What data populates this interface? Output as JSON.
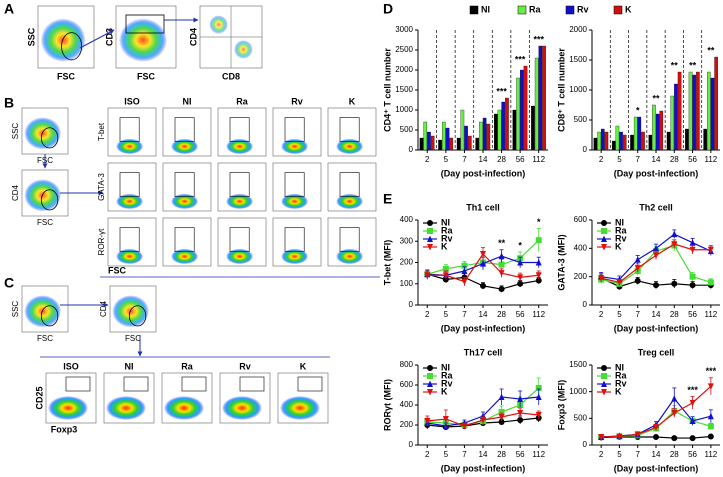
{
  "panel_labels": [
    "A",
    "B",
    "C",
    "D",
    "E"
  ],
  "flow": {
    "A": {
      "axes": [
        [
          "SSC",
          "FSC"
        ],
        [
          "CD3",
          "FSC"
        ],
        [
          "CD4",
          "CD8"
        ]
      ]
    },
    "B": {
      "gate_plots": [
        [
          "SSC",
          "FSC"
        ],
        [
          "CD4",
          "FSC"
        ]
      ],
      "columns": [
        "ISO",
        "NI",
        "Ra",
        "Rv",
        "K"
      ],
      "rows": [
        "T-bet",
        "GATA-3",
        "ROR-γt"
      ],
      "xlabel": "FSC"
    },
    "C": {
      "gate_plots": [
        [
          "SSC",
          "FSC"
        ],
        [
          "CD4",
          "FSC"
        ]
      ],
      "columns": [
        "ISO",
        "NI",
        "Ra",
        "Rv",
        "K"
      ],
      "ylabel": "CD25",
      "xlabel": "Foxp3"
    }
  },
  "chart_data": [
    {
      "type": "bar",
      "ylabel": "CD4⁺ T cell number",
      "xlabel": "(Day post-infection)",
      "categories": [
        "2",
        "5",
        "7",
        "14",
        "28",
        "56",
        "112"
      ],
      "series": [
        {
          "name": "NI",
          "color": "#000000",
          "values": [
            300,
            250,
            300,
            300,
            900,
            1000,
            1100
          ]
        },
        {
          "name": "Ra",
          "color": "#66ee44",
          "values": [
            700,
            700,
            1000,
            700,
            1000,
            1800,
            2300
          ]
        },
        {
          "name": "Rv",
          "color": "#1010cc",
          "values": [
            450,
            550,
            600,
            800,
            1200,
            2000,
            2600
          ]
        },
        {
          "name": "K",
          "color": "#d01010",
          "values": [
            350,
            300,
            350,
            650,
            1300,
            2100,
            2600
          ]
        }
      ],
      "ylim": [
        0,
        3000
      ],
      "yticks": [
        0,
        500,
        1000,
        1500,
        2000,
        2500,
        3000
      ],
      "annotations": [
        {
          "text": "***",
          "x": "28"
        },
        {
          "text": "***",
          "x": "56"
        },
        {
          "text": "***",
          "x": "112"
        }
      ]
    },
    {
      "type": "bar",
      "ylabel": "CD8⁺ T cell number",
      "xlabel": "(Day post-infection)",
      "categories": [
        "2",
        "5",
        "7",
        "14",
        "28",
        "56",
        "112"
      ],
      "series": [
        {
          "name": "NI",
          "color": "#000000",
          "values": [
            200,
            150,
            250,
            250,
            300,
            350,
            350
          ]
        },
        {
          "name": "Ra",
          "color": "#66ee44",
          "values": [
            300,
            400,
            550,
            750,
            900,
            1300,
            1300
          ]
        },
        {
          "name": "Rv",
          "color": "#1010cc",
          "values": [
            350,
            300,
            550,
            600,
            1100,
            1250,
            1200
          ]
        },
        {
          "name": "K",
          "color": "#d01010",
          "values": [
            300,
            250,
            300,
            650,
            1300,
            1300,
            1550
          ]
        }
      ],
      "ylim": [
        0,
        2000
      ],
      "yticks": [
        0,
        500,
        1000,
        1500,
        2000
      ],
      "annotations": [
        {
          "text": "*",
          "x": "7"
        },
        {
          "text": "**",
          "x": "14"
        },
        {
          "text": "**",
          "x": "28"
        },
        {
          "text": "**",
          "x": "56"
        },
        {
          "text": "**",
          "x": "112"
        }
      ]
    },
    {
      "type": "line",
      "title": "Th1 cell",
      "ylabel": "T-bet (MFI)",
      "xlabel": "(Day post-infection)",
      "categories": [
        "2",
        "5",
        "7",
        "14",
        "28",
        "56",
        "112"
      ],
      "series": [
        {
          "name": "NI",
          "color": "#000000",
          "marker": "circle",
          "values": [
            145,
            120,
            130,
            90,
            75,
            100,
            115
          ],
          "errors": [
            20,
            15,
            20,
            15,
            15,
            15,
            15
          ]
        },
        {
          "name": "Ra",
          "color": "#44dd33",
          "marker": "square",
          "values": [
            145,
            170,
            185,
            200,
            190,
            220,
            305
          ],
          "errors": [
            20,
            20,
            20,
            25,
            25,
            30,
            55
          ]
        },
        {
          "name": "Rv",
          "color": "#1010cc",
          "marker": "triangle-up",
          "values": [
            145,
            140,
            160,
            195,
            230,
            200,
            200
          ],
          "errors": [
            20,
            20,
            20,
            30,
            30,
            25,
            25
          ]
        },
        {
          "name": "K",
          "color": "#e01010",
          "marker": "triangle-down",
          "values": [
            140,
            140,
            110,
            240,
            150,
            130,
            140
          ],
          "errors": [
            20,
            20,
            20,
            30,
            20,
            20,
            20
          ]
        }
      ],
      "ylim": [
        0,
        400
      ],
      "yticks": [
        0,
        100,
        200,
        300,
        400
      ],
      "annotations": [
        {
          "text": "**",
          "x": "28"
        },
        {
          "text": "*",
          "x": "56"
        },
        {
          "text": "*",
          "x": "112"
        }
      ]
    },
    {
      "type": "line",
      "title": "Th2  cell",
      "ylabel": "GATA-3 (MFI)",
      "xlabel": "(Day post-infection)",
      "categories": [
        "2",
        "5",
        "7",
        "14",
        "28",
        "56",
        "112"
      ],
      "series": [
        {
          "name": "NI",
          "color": "#000000",
          "marker": "circle",
          "values": [
            190,
            130,
            170,
            140,
            150,
            140,
            140
          ],
          "errors": [
            30,
            20,
            25,
            25,
            30,
            25,
            25
          ]
        },
        {
          "name": "Ra",
          "color": "#44dd33",
          "marker": "square",
          "values": [
            180,
            150,
            240,
            380,
            420,
            200,
            160
          ],
          "errors": [
            30,
            20,
            30,
            30,
            40,
            30,
            25
          ]
        },
        {
          "name": "Rv",
          "color": "#1010cc",
          "marker": "triangle-up",
          "values": [
            200,
            180,
            320,
            400,
            500,
            440,
            380
          ],
          "errors": [
            30,
            25,
            30,
            30,
            30,
            30,
            30
          ]
        },
        {
          "name": "K",
          "color": "#e01010",
          "marker": "triangle-down",
          "values": [
            190,
            160,
            260,
            350,
            430,
            390,
            390
          ],
          "errors": [
            30,
            20,
            30,
            30,
            30,
            30,
            30
          ]
        }
      ],
      "ylim": [
        0,
        600
      ],
      "yticks": [
        0,
        200,
        400,
        600
      ],
      "annotations": []
    },
    {
      "type": "line",
      "title": "Th17 cell",
      "ylabel": "RORγt (MFI)",
      "xlabel": "(Day post-infection)",
      "categories": [
        "2",
        "5",
        "7",
        "14",
        "28",
        "56",
        "112"
      ],
      "series": [
        {
          "name": "NI",
          "color": "#000000",
          "marker": "circle",
          "values": [
            200,
            180,
            190,
            220,
            230,
            250,
            270
          ],
          "errors": [
            40,
            30,
            30,
            30,
            30,
            40,
            40
          ]
        },
        {
          "name": "Ra",
          "color": "#44dd33",
          "marker": "square",
          "values": [
            230,
            220,
            200,
            240,
            330,
            400,
            570
          ],
          "errors": [
            40,
            40,
            30,
            40,
            60,
            80,
            100
          ]
        },
        {
          "name": "Rv",
          "color": "#1010cc",
          "marker": "triangle-up",
          "values": [
            220,
            190,
            220,
            290,
            480,
            460,
            480
          ],
          "errors": [
            40,
            30,
            30,
            40,
            80,
            80,
            80
          ]
        },
        {
          "name": "K",
          "color": "#e01010",
          "marker": "triangle-down",
          "values": [
            240,
            260,
            190,
            250,
            280,
            320,
            300
          ],
          "errors": [
            50,
            90,
            30,
            40,
            40,
            50,
            40
          ]
        }
      ],
      "ylim": [
        0,
        800
      ],
      "yticks": [
        0,
        200,
        400,
        600,
        800
      ],
      "annotations": []
    },
    {
      "type": "line",
      "title": "Treg cell",
      "ylabel": "Foxp3 (MFI)",
      "xlabel": "(Day post-infection)",
      "categories": [
        "2",
        "5",
        "7",
        "14",
        "28",
        "56",
        "112"
      ],
      "series": [
        {
          "name": "NI",
          "color": "#000000",
          "marker": "circle",
          "values": [
            140,
            150,
            150,
            150,
            130,
            130,
            160
          ],
          "errors": [
            30,
            20,
            20,
            20,
            20,
            20,
            20
          ]
        },
        {
          "name": "Ra",
          "color": "#44dd33",
          "marker": "square",
          "values": [
            150,
            160,
            180,
            310,
            640,
            450,
            350
          ],
          "errors": [
            30,
            20,
            30,
            60,
            100,
            80,
            60
          ]
        },
        {
          "name": "Rv",
          "color": "#1010cc",
          "marker": "triangle-up",
          "values": [
            150,
            170,
            200,
            380,
            870,
            450,
            540
          ],
          "errors": [
            30,
            20,
            30,
            60,
            200,
            80,
            120
          ]
        },
        {
          "name": "K",
          "color": "#e01010",
          "marker": "triangle-down",
          "values": [
            150,
            160,
            200,
            330,
            600,
            790,
            1100
          ],
          "errors": [
            30,
            20,
            30,
            60,
            80,
            120,
            160
          ]
        }
      ],
      "ylim": [
        0,
        1500
      ],
      "yticks": [
        0,
        500,
        1000,
        1500
      ],
      "annotations": [
        {
          "text": "***",
          "x": "56"
        },
        {
          "text": "***",
          "x": "112"
        }
      ]
    }
  ]
}
